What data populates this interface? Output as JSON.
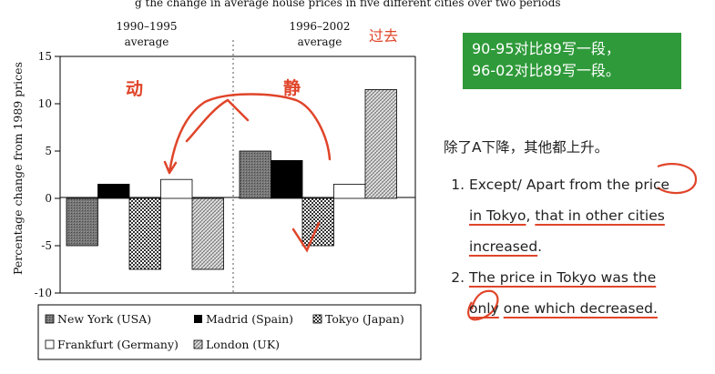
{
  "colors": {
    "accent_red": "#e0452a",
    "green_box": "#2f9a3a",
    "new_york": "#6b6b6b",
    "madrid": "#000000",
    "tokyo": "#444444",
    "frankfurt": "#ffffff",
    "london": "#b8b8b8"
  },
  "top_caption": "g the change in average house prices in five different cities over two periods",
  "chart_data": {
    "type": "bar",
    "ylabel": "Percentage change from 1989 prices",
    "ylim": [
      -10,
      15
    ],
    "yticks": [
      "15",
      "10",
      "5",
      "0",
      "-5",
      "-10"
    ],
    "grid": false,
    "legend_position": "bottom",
    "categories": [
      "1990–1995\naverage",
      "1996–2002\naverage"
    ],
    "category_labels": [
      {
        "line1": "1990–1995",
        "line2": "average"
      },
      {
        "line1": "1996–2002",
        "line2": "average"
      }
    ],
    "series": [
      {
        "name": "New York (USA)",
        "values": [
          -5,
          5
        ],
        "pattern": "new_york"
      },
      {
        "name": "Madrid (Spain)",
        "values": [
          1.5,
          4
        ],
        "pattern": "madrid"
      },
      {
        "name": "Tokyo (Japan)",
        "values": [
          -7.5,
          -5
        ],
        "pattern": "tokyo"
      },
      {
        "name": "Frankfurt (Germany)",
        "values": [
          2,
          1.5
        ],
        "pattern": "frankfurt"
      },
      {
        "name": "London (UK)",
        "values": [
          -7.5,
          11.5
        ],
        "pattern": "london"
      }
    ]
  },
  "annotations": {
    "past": "过去",
    "dynamic": "动",
    "static": "静"
  },
  "green_box": {
    "line1": "90-95对比89写一段，",
    "line2": "96-02对比89写一段。"
  },
  "notes": {
    "heading": "除了A下降，其他都上升。",
    "item1_a": "Except/ Apart from the price",
    "item1_b": "in Tokyo",
    "item1_c": ", ",
    "item1_d": "that in other cities",
    "item1_e": "increased",
    "item1_f": ".",
    "item2_a": "The price in Tokyo was the",
    "item2_b": "only",
    "item2_c": " ",
    "item2_d": "one which decreased."
  }
}
